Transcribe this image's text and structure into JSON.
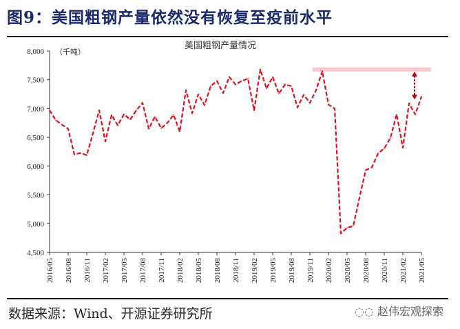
{
  "figure": {
    "title": "图9：美国粗钢产量依然没有恢复至疫前水平",
    "source": "数据来源：Wind、开源证券研究所",
    "watermark": "赵伟宏观探索"
  },
  "chart_data": {
    "type": "line",
    "title": "美国粗钢产量情况",
    "unit_label": "（千吨）",
    "xlabel": "",
    "ylabel": "",
    "ylim": [
      4500,
      8000
    ],
    "yticks": [
      4500,
      5000,
      5500,
      6000,
      6500,
      7000,
      7500,
      8000
    ],
    "ytick_labels": [
      "4,500",
      "5,000",
      "5,500",
      "6,000",
      "6,500",
      "7,000",
      "7,500",
      "8,000"
    ],
    "xtick_labels": [
      "2016/05",
      "2016/08",
      "2016/11",
      "2017/02",
      "2017/05",
      "2017/08",
      "2017/11",
      "2018/02",
      "2018/05",
      "2018/08",
      "2018/11",
      "2019/02",
      "2019/05",
      "2019/08",
      "2019/11",
      "2020/02",
      "2020/05",
      "2020/08",
      "2020/11",
      "2021/02",
      "2021/05"
    ],
    "grid": false,
    "series": [
      {
        "name": "美国粗钢产量",
        "color": "#e0101e",
        "style": "dashed",
        "start": "2016/05",
        "frequency": "monthly",
        "values": [
          6970,
          6800,
          6720,
          6650,
          6200,
          6230,
          6190,
          6570,
          6970,
          6430,
          6890,
          6710,
          6900,
          6810,
          6970,
          7100,
          6650,
          6860,
          6660,
          6750,
          6890,
          6600,
          7320,
          6920,
          7250,
          7060,
          7390,
          7480,
          7270,
          7550,
          7420,
          7480,
          7520,
          6970,
          7680,
          7350,
          7550,
          7260,
          7420,
          7390,
          7020,
          7240,
          7100,
          7320,
          7650,
          7070,
          7000,
          4830,
          4930,
          4960,
          5450,
          5930,
          5980,
          6220,
          6310,
          6490,
          6900,
          6320,
          7090,
          6900,
          7210
        ]
      }
    ],
    "annotations": {
      "pre_pandemic_level": 7680,
      "band_color": "#f9c8cc",
      "arrow_color": "#c00010",
      "arrow_from": 7680,
      "arrow_to": 7120
    }
  }
}
